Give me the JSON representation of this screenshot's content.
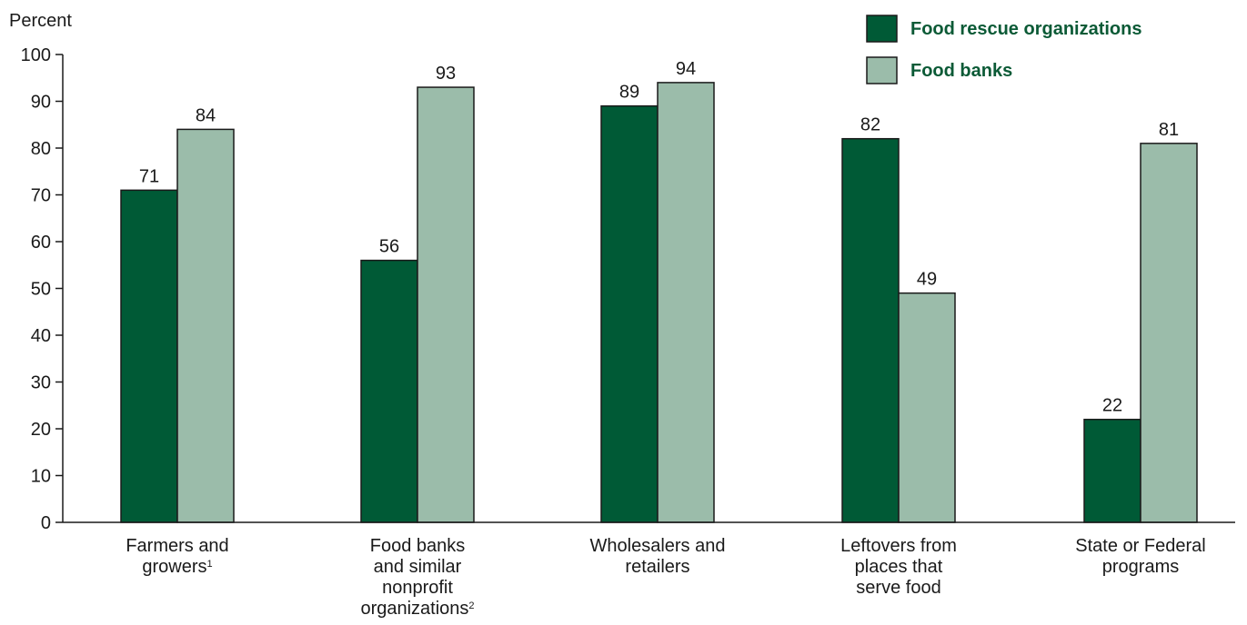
{
  "chart_data": {
    "type": "bar",
    "ylabel": "Percent",
    "ylim": [
      0,
      100
    ],
    "yticks": [
      0,
      10,
      20,
      30,
      40,
      50,
      60,
      70,
      80,
      90,
      100
    ],
    "grid": false,
    "legend_position": "top-right",
    "categories": [
      {
        "lines": [
          "Farmers and",
          "growers"
        ],
        "footnote": "1"
      },
      {
        "lines": [
          "Food banks",
          "and similar",
          "nonprofit",
          "organizations"
        ],
        "footnote": "2"
      },
      {
        "lines": [
          "Wholesalers and",
          "retailers"
        ],
        "footnote": ""
      },
      {
        "lines": [
          "Leftovers from",
          "places that",
          "serve food"
        ],
        "footnote": ""
      },
      {
        "lines": [
          "State or Federal",
          "programs"
        ],
        "footnote": ""
      }
    ],
    "series": [
      {
        "name": "Food rescue organizations",
        "color": "#005a36",
        "values": [
          71,
          56,
          89,
          82,
          22
        ]
      },
      {
        "name": "Food banks",
        "color": "#9bbcaa",
        "values": [
          84,
          93,
          94,
          49,
          81
        ]
      }
    ],
    "legend_text_color": "#0b5a36"
  }
}
